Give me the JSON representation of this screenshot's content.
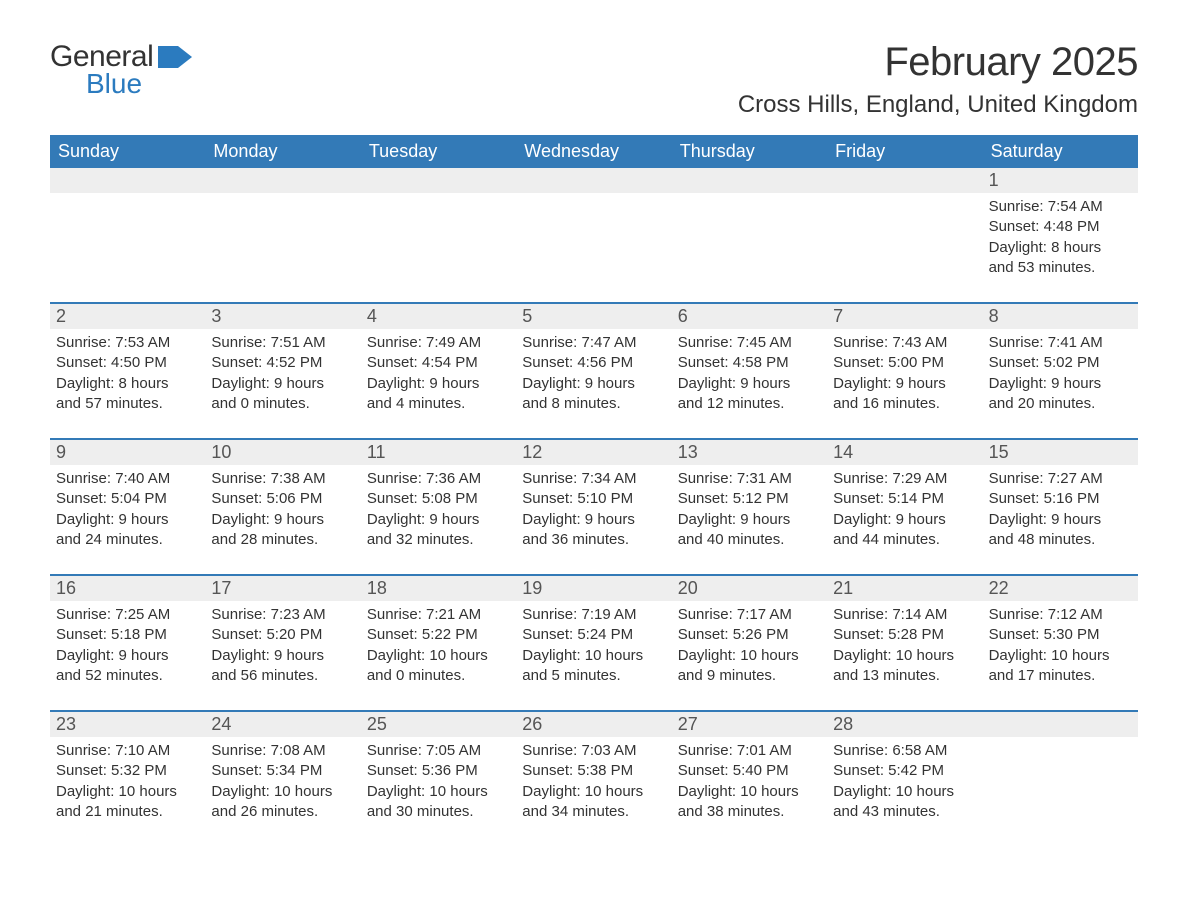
{
  "logo": {
    "text_general": "General",
    "text_blue": "Blue",
    "flag_color": "#2b7bbf"
  },
  "title": "February 2025",
  "location": "Cross Hills, England, United Kingdom",
  "colors": {
    "header_bg": "#337ab7",
    "header_text": "#ffffff",
    "daynum_bg": "#eeeeee",
    "body_text": "#333333",
    "rule": "#337ab7",
    "background": "#ffffff"
  },
  "typography": {
    "title_fontsize": 40,
    "location_fontsize": 24,
    "weekday_fontsize": 18,
    "daynum_fontsize": 18,
    "body_fontsize": 15,
    "font_family": "Segoe UI"
  },
  "weekdays": [
    "Sunday",
    "Monday",
    "Tuesday",
    "Wednesday",
    "Thursday",
    "Friday",
    "Saturday"
  ],
  "weeks": [
    [
      null,
      null,
      null,
      null,
      null,
      null,
      {
        "n": "1",
        "sunrise": "Sunrise: 7:54 AM",
        "sunset": "Sunset: 4:48 PM",
        "day1": "Daylight: 8 hours",
        "day2": "and 53 minutes."
      }
    ],
    [
      {
        "n": "2",
        "sunrise": "Sunrise: 7:53 AM",
        "sunset": "Sunset: 4:50 PM",
        "day1": "Daylight: 8 hours",
        "day2": "and 57 minutes."
      },
      {
        "n": "3",
        "sunrise": "Sunrise: 7:51 AM",
        "sunset": "Sunset: 4:52 PM",
        "day1": "Daylight: 9 hours",
        "day2": "and 0 minutes."
      },
      {
        "n": "4",
        "sunrise": "Sunrise: 7:49 AM",
        "sunset": "Sunset: 4:54 PM",
        "day1": "Daylight: 9 hours",
        "day2": "and 4 minutes."
      },
      {
        "n": "5",
        "sunrise": "Sunrise: 7:47 AM",
        "sunset": "Sunset: 4:56 PM",
        "day1": "Daylight: 9 hours",
        "day2": "and 8 minutes."
      },
      {
        "n": "6",
        "sunrise": "Sunrise: 7:45 AM",
        "sunset": "Sunset: 4:58 PM",
        "day1": "Daylight: 9 hours",
        "day2": "and 12 minutes."
      },
      {
        "n": "7",
        "sunrise": "Sunrise: 7:43 AM",
        "sunset": "Sunset: 5:00 PM",
        "day1": "Daylight: 9 hours",
        "day2": "and 16 minutes."
      },
      {
        "n": "8",
        "sunrise": "Sunrise: 7:41 AM",
        "sunset": "Sunset: 5:02 PM",
        "day1": "Daylight: 9 hours",
        "day2": "and 20 minutes."
      }
    ],
    [
      {
        "n": "9",
        "sunrise": "Sunrise: 7:40 AM",
        "sunset": "Sunset: 5:04 PM",
        "day1": "Daylight: 9 hours",
        "day2": "and 24 minutes."
      },
      {
        "n": "10",
        "sunrise": "Sunrise: 7:38 AM",
        "sunset": "Sunset: 5:06 PM",
        "day1": "Daylight: 9 hours",
        "day2": "and 28 minutes."
      },
      {
        "n": "11",
        "sunrise": "Sunrise: 7:36 AM",
        "sunset": "Sunset: 5:08 PM",
        "day1": "Daylight: 9 hours",
        "day2": "and 32 minutes."
      },
      {
        "n": "12",
        "sunrise": "Sunrise: 7:34 AM",
        "sunset": "Sunset: 5:10 PM",
        "day1": "Daylight: 9 hours",
        "day2": "and 36 minutes."
      },
      {
        "n": "13",
        "sunrise": "Sunrise: 7:31 AM",
        "sunset": "Sunset: 5:12 PM",
        "day1": "Daylight: 9 hours",
        "day2": "and 40 minutes."
      },
      {
        "n": "14",
        "sunrise": "Sunrise: 7:29 AM",
        "sunset": "Sunset: 5:14 PM",
        "day1": "Daylight: 9 hours",
        "day2": "and 44 minutes."
      },
      {
        "n": "15",
        "sunrise": "Sunrise: 7:27 AM",
        "sunset": "Sunset: 5:16 PM",
        "day1": "Daylight: 9 hours",
        "day2": "and 48 minutes."
      }
    ],
    [
      {
        "n": "16",
        "sunrise": "Sunrise: 7:25 AM",
        "sunset": "Sunset: 5:18 PM",
        "day1": "Daylight: 9 hours",
        "day2": "and 52 minutes."
      },
      {
        "n": "17",
        "sunrise": "Sunrise: 7:23 AM",
        "sunset": "Sunset: 5:20 PM",
        "day1": "Daylight: 9 hours",
        "day2": "and 56 minutes."
      },
      {
        "n": "18",
        "sunrise": "Sunrise: 7:21 AM",
        "sunset": "Sunset: 5:22 PM",
        "day1": "Daylight: 10 hours",
        "day2": "and 0 minutes."
      },
      {
        "n": "19",
        "sunrise": "Sunrise: 7:19 AM",
        "sunset": "Sunset: 5:24 PM",
        "day1": "Daylight: 10 hours",
        "day2": "and 5 minutes."
      },
      {
        "n": "20",
        "sunrise": "Sunrise: 7:17 AM",
        "sunset": "Sunset: 5:26 PM",
        "day1": "Daylight: 10 hours",
        "day2": "and 9 minutes."
      },
      {
        "n": "21",
        "sunrise": "Sunrise: 7:14 AM",
        "sunset": "Sunset: 5:28 PM",
        "day1": "Daylight: 10 hours",
        "day2": "and 13 minutes."
      },
      {
        "n": "22",
        "sunrise": "Sunrise: 7:12 AM",
        "sunset": "Sunset: 5:30 PM",
        "day1": "Daylight: 10 hours",
        "day2": "and 17 minutes."
      }
    ],
    [
      {
        "n": "23",
        "sunrise": "Sunrise: 7:10 AM",
        "sunset": "Sunset: 5:32 PM",
        "day1": "Daylight: 10 hours",
        "day2": "and 21 minutes."
      },
      {
        "n": "24",
        "sunrise": "Sunrise: 7:08 AM",
        "sunset": "Sunset: 5:34 PM",
        "day1": "Daylight: 10 hours",
        "day2": "and 26 minutes."
      },
      {
        "n": "25",
        "sunrise": "Sunrise: 7:05 AM",
        "sunset": "Sunset: 5:36 PM",
        "day1": "Daylight: 10 hours",
        "day2": "and 30 minutes."
      },
      {
        "n": "26",
        "sunrise": "Sunrise: 7:03 AM",
        "sunset": "Sunset: 5:38 PM",
        "day1": "Daylight: 10 hours",
        "day2": "and 34 minutes."
      },
      {
        "n": "27",
        "sunrise": "Sunrise: 7:01 AM",
        "sunset": "Sunset: 5:40 PM",
        "day1": "Daylight: 10 hours",
        "day2": "and 38 minutes."
      },
      {
        "n": "28",
        "sunrise": "Sunrise: 6:58 AM",
        "sunset": "Sunset: 5:42 PM",
        "day1": "Daylight: 10 hours",
        "day2": "and 43 minutes."
      },
      null
    ]
  ]
}
